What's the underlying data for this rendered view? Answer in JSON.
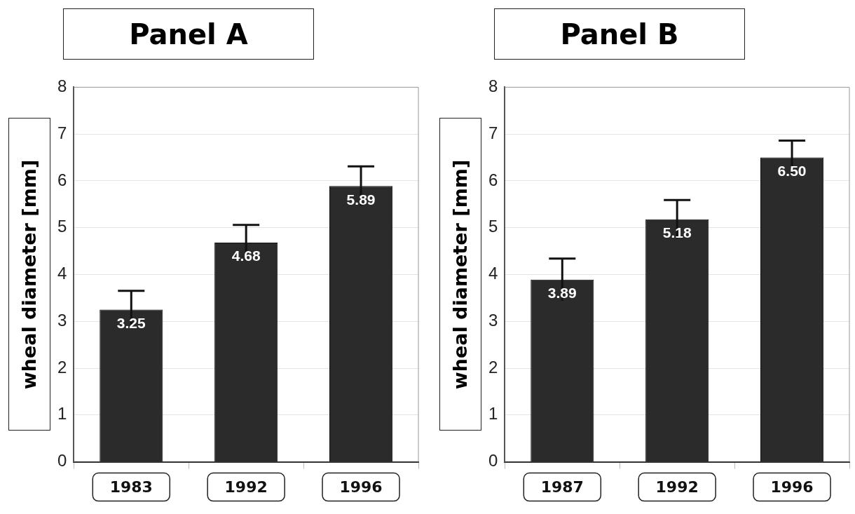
{
  "chart_data": [
    {
      "type": "bar",
      "title": "Panel A",
      "ylabel": "wheal diameter [mm]",
      "categories": [
        "1983",
        "1992",
        "1996"
      ],
      "values": [
        3.25,
        4.68,
        5.89
      ],
      "errors": [
        0.4,
        0.38,
        0.42
      ],
      "value_labels": [
        "3.25",
        "4.68",
        "5.89"
      ],
      "color": "#2b2b2b",
      "ylim": [
        0,
        8
      ],
      "yticks": [
        0,
        1,
        2,
        3,
        4,
        5,
        6,
        7,
        8
      ],
      "grid": "y"
    },
    {
      "type": "bar",
      "title": "Panel B",
      "ylabel": "wheal diameter [mm]",
      "categories": [
        "1987",
        "1992",
        "1996"
      ],
      "values": [
        3.89,
        5.18,
        6.5
      ],
      "errors": [
        0.45,
        0.41,
        0.36
      ],
      "value_labels": [
        "3.89",
        "5.18",
        "6.50"
      ],
      "color": "#2b2b2b",
      "ylim": [
        0,
        8
      ],
      "yticks": [
        0,
        1,
        2,
        3,
        4,
        5,
        6,
        7,
        8
      ],
      "grid": "y"
    }
  ]
}
